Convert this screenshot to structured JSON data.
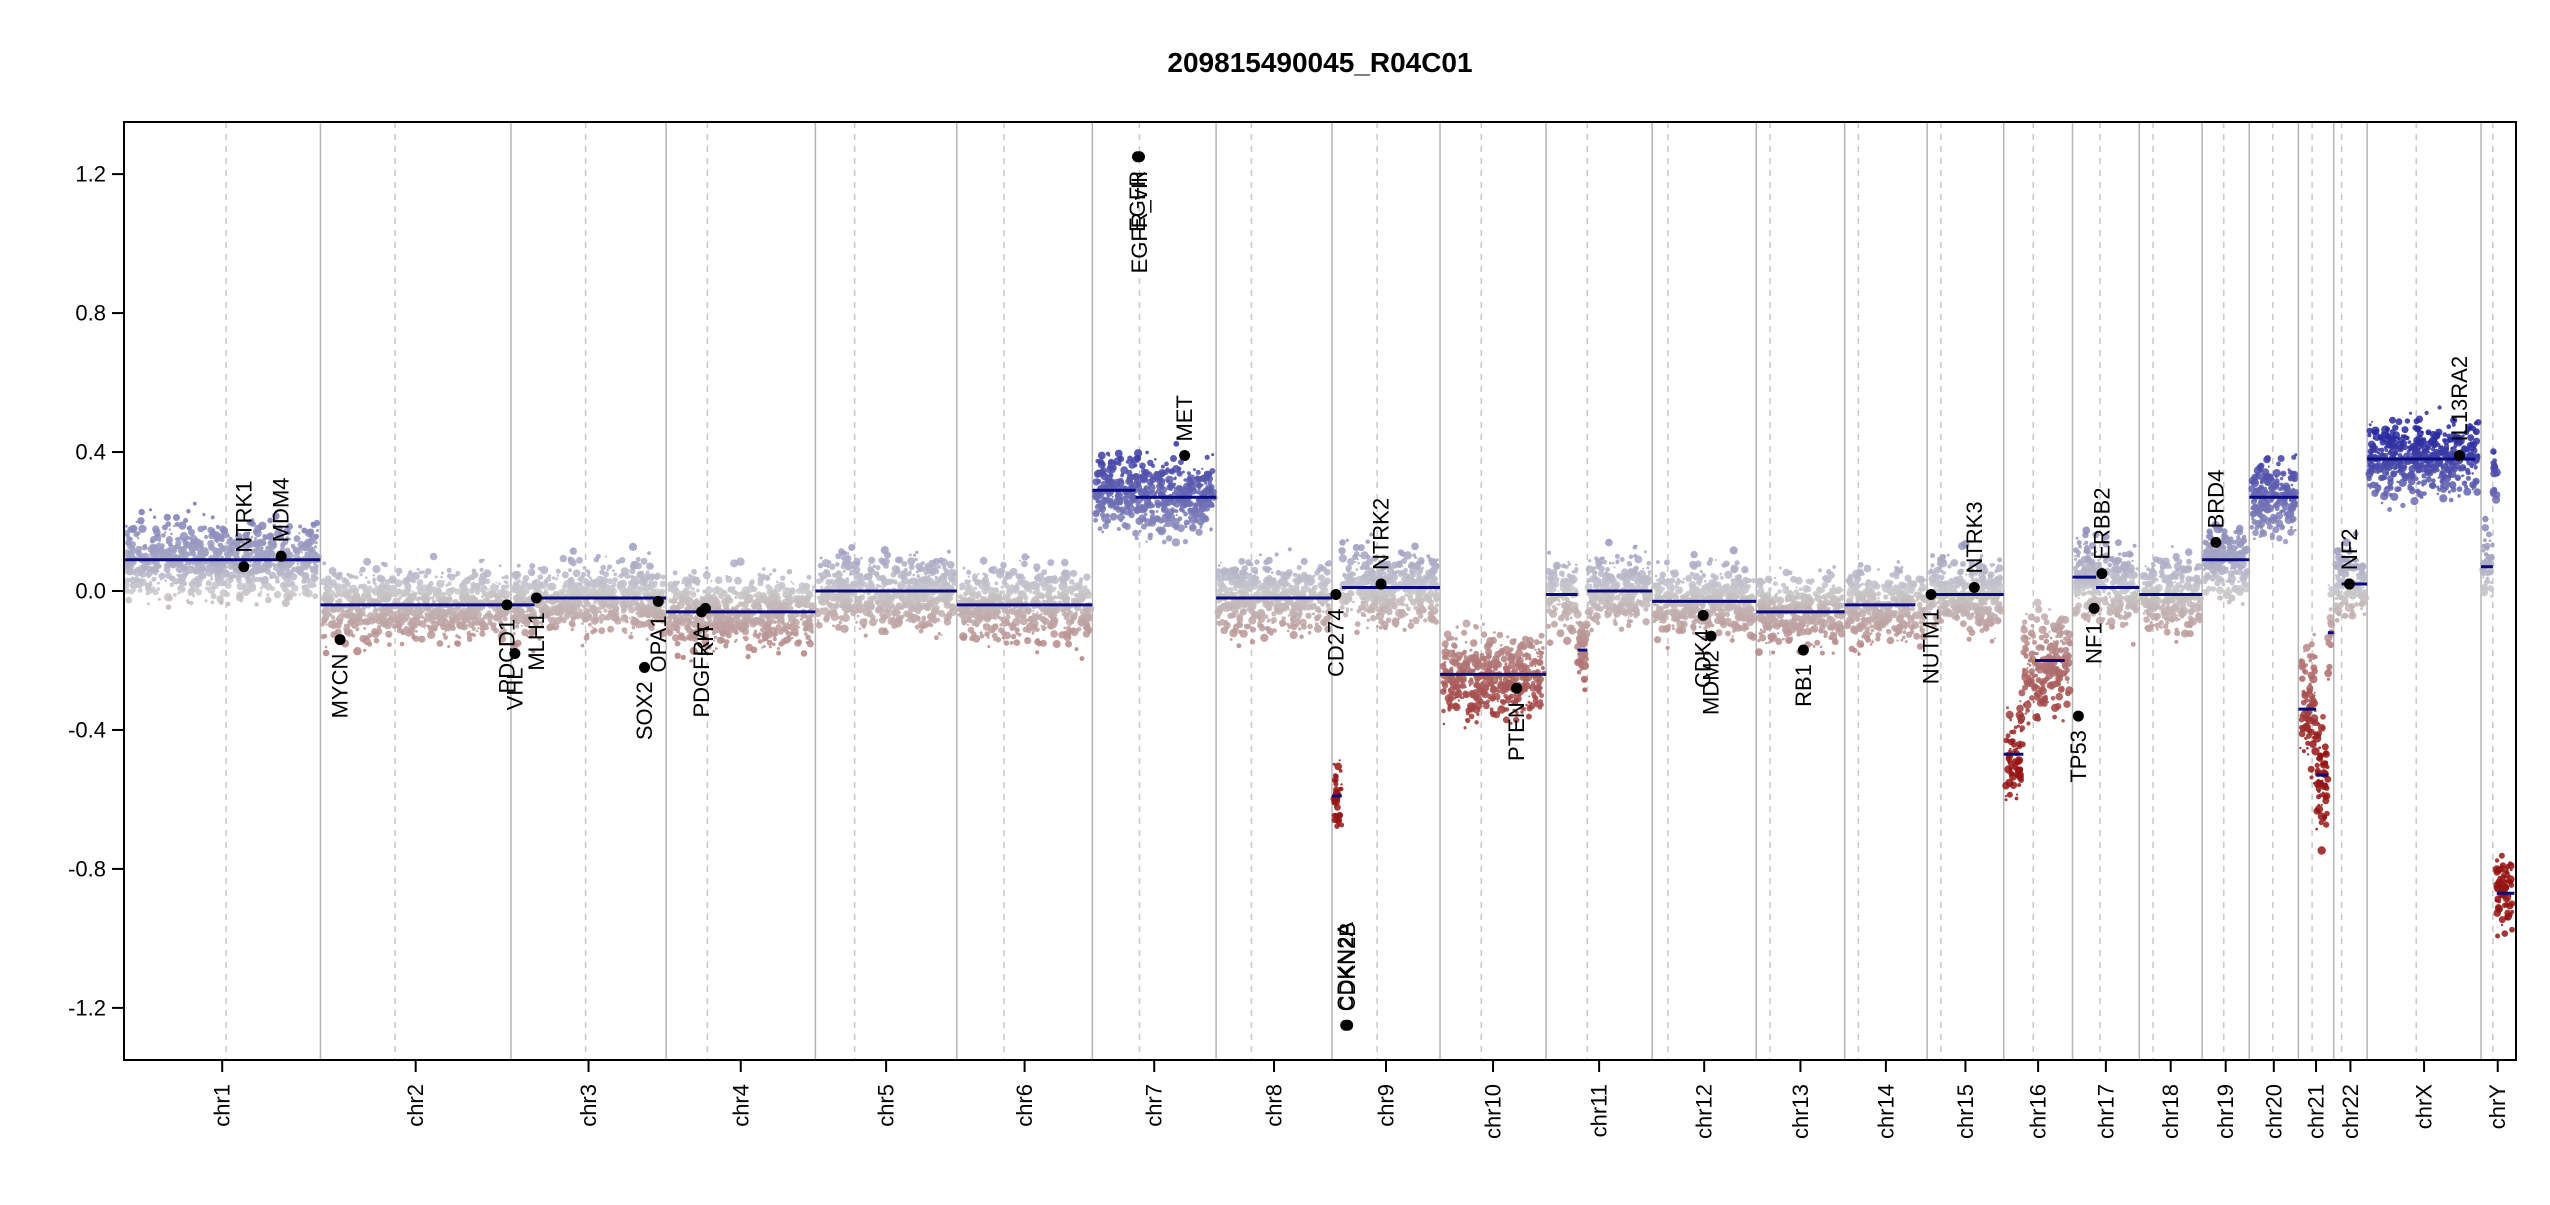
{
  "chart_data": {
    "type": "scatter",
    "title": "209815490045_R04C01",
    "xlabel": "",
    "ylabel": "",
    "ylim": [
      -1.35,
      1.35
    ],
    "y_ticks": [
      "1.2",
      "0.8",
      "0.4",
      "0.0",
      "-0.4",
      "-0.8",
      "-1.2"
    ],
    "y_tick_values": [
      1.2,
      0.8,
      0.4,
      0.0,
      -0.4,
      -0.8,
      -1.2
    ],
    "chromosomes": [
      {
        "name": "chr1",
        "start": 0,
        "end": 1.0,
        "centromere": 0.52,
        "mean": 0.08,
        "noise": 0.09
      },
      {
        "name": "chr2",
        "start": 1.0,
        "end": 1.97,
        "centromere": 1.38,
        "mean": -0.04,
        "noise": 0.085
      },
      {
        "name": "chr3",
        "start": 1.97,
        "end": 2.76,
        "centromere": 2.35,
        "mean": -0.03,
        "noise": 0.085
      },
      {
        "name": "chr4",
        "start": 2.76,
        "end": 3.52,
        "centromere": 2.97,
        "mean": -0.05,
        "noise": 0.085
      },
      {
        "name": "chr5",
        "start": 3.52,
        "end": 4.24,
        "centromere": 3.72,
        "mean": -0.01,
        "noise": 0.085
      },
      {
        "name": "chr6",
        "start": 4.24,
        "end": 4.93,
        "centromere": 4.48,
        "mean": -0.04,
        "noise": 0.085
      },
      {
        "name": "chr7",
        "start": 4.93,
        "end": 5.56,
        "centromere": 5.17,
        "mean": 0.28,
        "noise": 0.09
      },
      {
        "name": "chr8",
        "start": 5.56,
        "end": 6.15,
        "centromere": 5.74,
        "mean": -0.02,
        "noise": 0.085
      },
      {
        "name": "chr9",
        "start": 6.15,
        "end": 6.7,
        "centromere": 6.38,
        "mean": 0.01,
        "noise": 0.085
      },
      {
        "name": "chr10",
        "start": 6.7,
        "end": 7.24,
        "centromere": 6.91,
        "mean": -0.23,
        "noise": 0.1
      },
      {
        "name": "chr11",
        "start": 7.24,
        "end": 7.78,
        "centromere": 7.45,
        "mean": 0.0,
        "noise": 0.085
      },
      {
        "name": "chr12",
        "start": 7.78,
        "end": 8.31,
        "centromere": 7.86,
        "mean": -0.02,
        "noise": 0.085
      },
      {
        "name": "chr13",
        "start": 8.31,
        "end": 8.76,
        "centromere": 8.38,
        "mean": -0.06,
        "noise": 0.085
      },
      {
        "name": "chr14",
        "start": 8.76,
        "end": 9.18,
        "centromere": 8.83,
        "mean": -0.04,
        "noise": 0.085
      },
      {
        "name": "chr15",
        "start": 9.18,
        "end": 9.57,
        "centromere": 9.25,
        "mean": 0.0,
        "noise": 0.085
      },
      {
        "name": "chr16",
        "start": 9.57,
        "end": 9.92,
        "centromere": 9.72,
        "mean": -0.2,
        "noise": 0.12
      },
      {
        "name": "chr17",
        "start": 9.92,
        "end": 10.26,
        "centromere": 10.06,
        "mean": 0.02,
        "noise": 0.09
      },
      {
        "name": "chr18",
        "start": 10.26,
        "end": 10.58,
        "centromere": 10.33,
        "mean": -0.01,
        "noise": 0.085
      },
      {
        "name": "chr19",
        "start": 10.58,
        "end": 10.82,
        "centromere": 10.69,
        "mean": 0.09,
        "noise": 0.085
      },
      {
        "name": "chr20",
        "start": 10.82,
        "end": 11.07,
        "centromere": 10.94,
        "mean": 0.27,
        "noise": 0.09
      },
      {
        "name": "chr21",
        "start": 11.07,
        "end": 11.25,
        "centromere": 11.14,
        "mean": -0.34,
        "noise": 0.15
      },
      {
        "name": "chr22",
        "start": 11.25,
        "end": 11.42,
        "centromere": 11.29,
        "mean": 0.02,
        "noise": 0.085
      },
      {
        "name": "chrX",
        "start": 11.42,
        "end": 12.0,
        "centromere": 11.67,
        "mean": 0.38,
        "noise": 0.09
      },
      {
        "name": "chrY",
        "start": 12.0,
        "end": 12.17,
        "centromere": 12.06,
        "mean": 0.35,
        "noise": 0.09
      }
    ],
    "segments": [
      {
        "x0": 0.0,
        "x1": 1.0,
        "y": 0.09
      },
      {
        "x0": 1.0,
        "x1": 1.97,
        "y": -0.04
      },
      {
        "x0": 1.97,
        "x1": 2.09,
        "y": -0.04
      },
      {
        "x0": 2.09,
        "x1": 2.76,
        "y": -0.02
      },
      {
        "x0": 2.76,
        "x1": 3.52,
        "y": -0.06
      },
      {
        "x0": 3.52,
        "x1": 4.24,
        "y": 0.0
      },
      {
        "x0": 4.24,
        "x1": 4.93,
        "y": -0.04
      },
      {
        "x0": 4.93,
        "x1": 5.15,
        "y": 0.29
      },
      {
        "x0": 5.15,
        "x1": 5.56,
        "y": 0.27
      },
      {
        "x0": 5.56,
        "x1": 6.15,
        "y": -0.02
      },
      {
        "x0": 6.15,
        "x1": 6.2,
        "y": -0.59
      },
      {
        "x0": 6.2,
        "x1": 6.7,
        "y": 0.01
      },
      {
        "x0": 6.7,
        "x1": 7.24,
        "y": -0.24
      },
      {
        "x0": 7.24,
        "x1": 7.4,
        "y": -0.01
      },
      {
        "x0": 7.4,
        "x1": 7.45,
        "y": -0.17
      },
      {
        "x0": 7.45,
        "x1": 7.78,
        "y": 0.0
      },
      {
        "x0": 7.78,
        "x1": 8.31,
        "y": -0.03
      },
      {
        "x0": 8.31,
        "x1": 8.76,
        "y": -0.06
      },
      {
        "x0": 8.76,
        "x1": 9.12,
        "y": -0.04
      },
      {
        "x0": 9.18,
        "x1": 9.57,
        "y": -0.01
      },
      {
        "x0": 9.57,
        "x1": 9.67,
        "y": -0.47
      },
      {
        "x0": 9.73,
        "x1": 9.88,
        "y": -0.2
      },
      {
        "x0": 9.92,
        "x1": 10.04,
        "y": 0.04
      },
      {
        "x0": 10.04,
        "x1": 10.26,
        "y": 0.01
      },
      {
        "x0": 10.26,
        "x1": 10.58,
        "y": -0.01
      },
      {
        "x0": 10.58,
        "x1": 10.82,
        "y": 0.09
      },
      {
        "x0": 10.82,
        "x1": 11.07,
        "y": 0.27
      },
      {
        "x0": 11.07,
        "x1": 11.16,
        "y": -0.34
      },
      {
        "x0": 11.16,
        "x1": 11.22,
        "y": -0.53
      },
      {
        "x0": 11.22,
        "x1": 11.25,
        "y": -0.12
      },
      {
        "x0": 11.29,
        "x1": 11.42,
        "y": 0.02
      },
      {
        "x0": 11.42,
        "x1": 11.97,
        "y": 0.38
      },
      {
        "x0": 12.0,
        "x1": 12.06,
        "y": 0.07
      },
      {
        "x0": 12.08,
        "x1": 12.17,
        "y": -0.87
      }
    ],
    "genes": [
      {
        "name": "NTRK1",
        "x": 0.61,
        "y": 0.07,
        "label_side": "up"
      },
      {
        "name": "MDM4",
        "x": 0.8,
        "y": 0.1,
        "label_side": "up"
      },
      {
        "name": "MYCN",
        "x": 1.1,
        "y": -0.14,
        "label_side": "down"
      },
      {
        "name": "PDCD1",
        "x": 1.95,
        "y": -0.04,
        "label_side": "down"
      },
      {
        "name": "VHL",
        "x": 1.99,
        "y": -0.18,
        "label_side": "down"
      },
      {
        "name": "MLH1",
        "x": 2.1,
        "y": -0.02,
        "label_side": "down"
      },
      {
        "name": "SOX2",
        "x": 2.65,
        "y": -0.22,
        "label_side": "down"
      },
      {
        "name": "OPA1",
        "x": 2.72,
        "y": -0.03,
        "label_side": "down"
      },
      {
        "name": "PDGFRA",
        "x": 2.94,
        "y": -0.06,
        "label_side": "down"
      },
      {
        "name": "KIT",
        "x": 2.96,
        "y": -0.05,
        "label_side": "down"
      },
      {
        "name": "EGFR",
        "x": 5.16,
        "y": 1.25,
        "label_side": "down"
      },
      {
        "name": "EGFR_vIII",
        "x": 5.17,
        "y": 1.25,
        "label_side": "down"
      },
      {
        "name": "MET",
        "x": 5.4,
        "y": 0.39,
        "label_side": "up"
      },
      {
        "name": "CD274",
        "x": 6.17,
        "y": -0.01,
        "label_side": "down"
      },
      {
        "name": "CDKN2A",
        "x": 6.22,
        "y": -1.25,
        "label_side": "up"
      },
      {
        "name": "CDKN2B",
        "x": 6.23,
        "y": -1.25,
        "label_side": "up"
      },
      {
        "name": "NTRK2",
        "x": 6.4,
        "y": 0.02,
        "label_side": "up"
      },
      {
        "name": "PTEN",
        "x": 7.09,
        "y": -0.28,
        "label_side": "down"
      },
      {
        "name": "CDK4",
        "x": 8.04,
        "y": -0.07,
        "label_side": "down"
      },
      {
        "name": "MDM2",
        "x": 8.08,
        "y": -0.13,
        "label_side": "down"
      },
      {
        "name": "RB1",
        "x": 8.55,
        "y": -0.17,
        "label_side": "down"
      },
      {
        "name": "NUTM1",
        "x": 9.2,
        "y": -0.01,
        "label_side": "down"
      },
      {
        "name": "NTRK3",
        "x": 9.42,
        "y": 0.01,
        "label_side": "up"
      },
      {
        "name": "TP53",
        "x": 9.95,
        "y": -0.36,
        "label_side": "down"
      },
      {
        "name": "NF1",
        "x": 10.03,
        "y": -0.05,
        "label_side": "down"
      },
      {
        "name": "ERBB2",
        "x": 10.07,
        "y": 0.05,
        "label_side": "up"
      },
      {
        "name": "BRD4",
        "x": 10.65,
        "y": 0.14,
        "label_side": "up"
      },
      {
        "name": "NF2",
        "x": 11.33,
        "y": 0.02,
        "label_side": "up"
      },
      {
        "name": "IL13RA2",
        "x": 11.89,
        "y": 0.39,
        "label_side": "up"
      }
    ]
  }
}
